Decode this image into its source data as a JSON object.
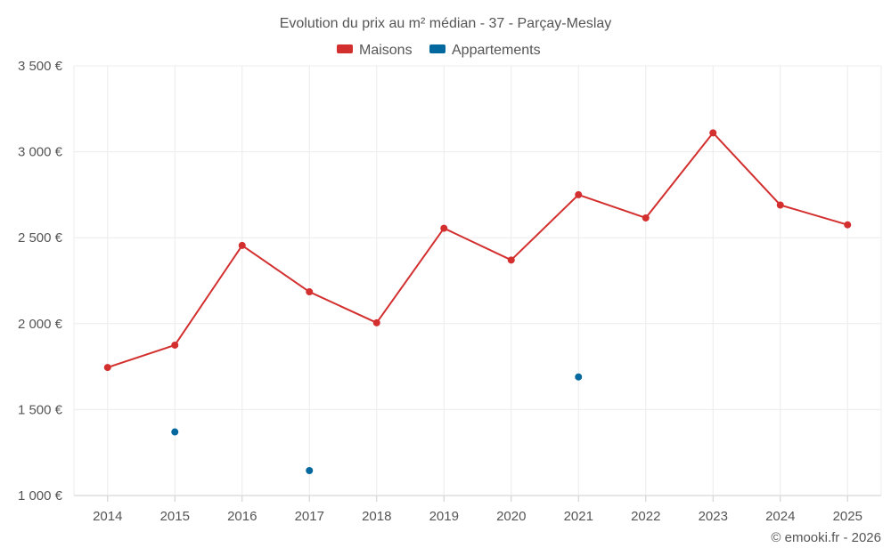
{
  "chart_data": {
    "type": "line",
    "title": "Evolution du prix au m² médian - 37 - Parçay-Meslay",
    "categories": [
      "2014",
      "2015",
      "2016",
      "2017",
      "2018",
      "2019",
      "2020",
      "2021",
      "2022",
      "2023",
      "2024",
      "2025"
    ],
    "ylim": [
      1000,
      3500
    ],
    "yticks": [
      1000,
      1500,
      2000,
      2500,
      3000,
      3500
    ],
    "ytick_labels": [
      "1 000 €",
      "1 500 €",
      "2 000 €",
      "2 500 €",
      "3 000 €",
      "3 500 €"
    ],
    "grid": true,
    "legend_position": "top-center",
    "series": [
      {
        "name": "Maisons",
        "color": "#d32f2f",
        "values": [
          1745,
          1875,
          2455,
          2185,
          2005,
          2555,
          2370,
          2750,
          2615,
          3110,
          2690,
          2575
        ],
        "line": true
      },
      {
        "name": "Appartements",
        "color": "#03689e",
        "values": [
          null,
          1370,
          null,
          1145,
          null,
          null,
          null,
          1690,
          null,
          null,
          null,
          null
        ],
        "line": false
      }
    ]
  },
  "credit": "© emooki.fr - 2026"
}
